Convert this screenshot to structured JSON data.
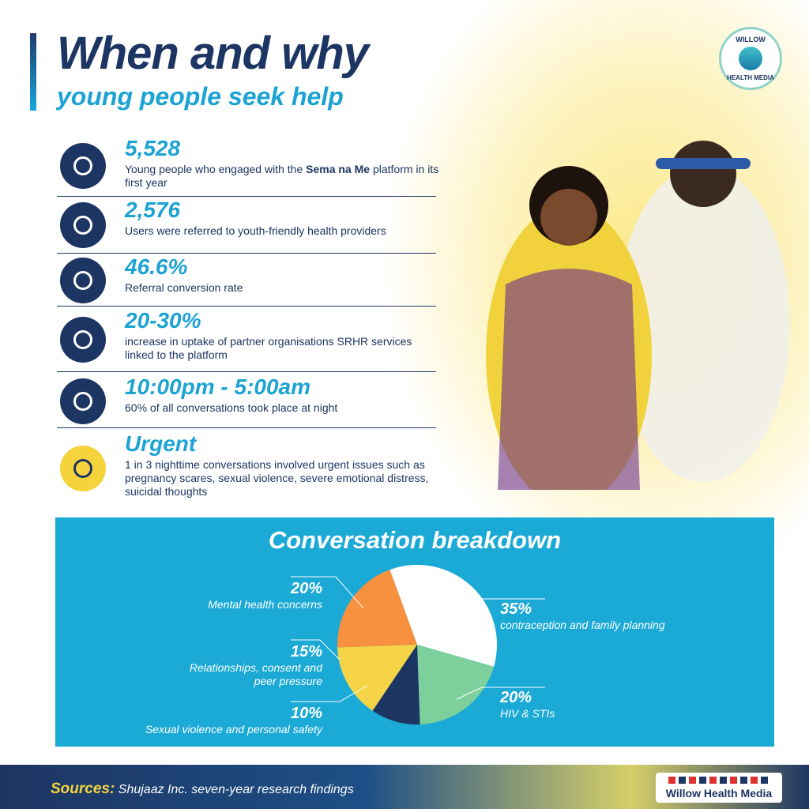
{
  "header": {
    "title": "When and why",
    "subtitle": "young people seek help"
  },
  "logo": {
    "top": "WILLOW",
    "bottom": "HEALTH MEDIA"
  },
  "stats": [
    {
      "value": "5,528",
      "description": [
        "Young people who engaged with the ",
        "Sema na Me",
        " platform in its first year"
      ]
    },
    {
      "value": "2,576",
      "description": [
        "Users were referred to youth-friendly health providers"
      ]
    },
    {
      "value": "46.6%",
      "description": [
        "Referral conversion rate"
      ]
    },
    {
      "value": "20-30%",
      "description": [
        "increase in uptake of partner organisations SRHR services linked to the platform"
      ]
    },
    {
      "value": "10:00pm - 5:00am",
      "description": [
        "60% of all conversations took place at night"
      ]
    },
    {
      "value": "Urgent",
      "description": [
        "1 in 3 nighttime conversations involved urgent issues such as pregnancy scares, sexual violence, severe emotional distress, suicidal thoughts"
      ]
    }
  ],
  "chart_data": {
    "type": "pie",
    "title": "Conversation breakdown",
    "categories": [
      "contraception and family planning",
      "HIV & STIs",
      "Sexual violence and personal safety",
      "Relationships, consent and peer pressure",
      "Mental health concerns"
    ],
    "values": [
      35,
      20,
      10,
      15,
      20
    ],
    "value_labels": [
      "35%",
      "20%",
      "10%",
      "15%",
      "20%"
    ],
    "colors": [
      "#ffffff",
      "#7dcf9c",
      "#1d3562",
      "#f5d547",
      "#f7903f"
    ]
  },
  "footer": {
    "sources_label": "Sources:",
    "sources_text": "Shujaaz Inc. seven-year research findings",
    "brand": "Willow Health Media"
  }
}
